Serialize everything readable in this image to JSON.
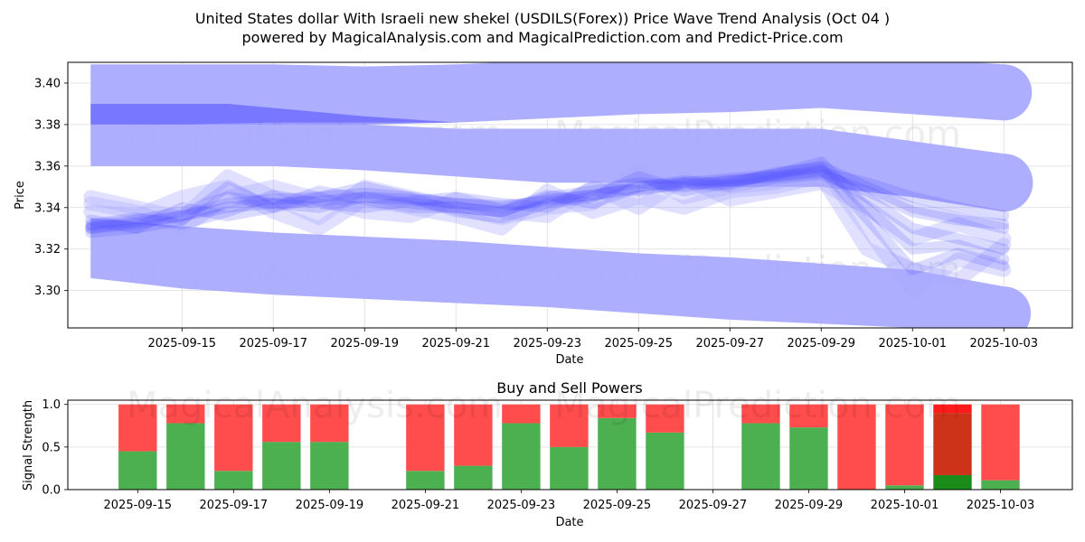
{
  "title_line1": "United States dollar With Israeli new shekel (USDILS(Forex)) Price Wave Trend Analysis (Oct 04 )",
  "title_line2": "powered by MagicalAnalysis.com and MagicalPrediction.com and Predict-Price.com",
  "watermarks": [
    "MagicalAnalysis.com",
    "MagicalPrediction.com"
  ],
  "colors": {
    "band": "#aaaaff",
    "wave": "#4a4aff",
    "buy": "#4caf50",
    "sell": "#ff4c4c",
    "buy_strong": "#1a8c1a",
    "sell_strong": "#ff1a1a",
    "sell_dark": "#cc3318"
  },
  "chart_data": [
    {
      "type": "line",
      "ylabel": "Price",
      "xlabel": "Date",
      "x_ticks": [
        "2025-09-15",
        "2025-09-17",
        "2025-09-19",
        "2025-09-21",
        "2025-09-23",
        "2025-09-25",
        "2025-09-27",
        "2025-09-29",
        "2025-10-01",
        "2025-10-03"
      ],
      "y_ticks": [
        "3.30",
        "3.32",
        "3.34",
        "3.36",
        "3.38",
        "3.40"
      ],
      "xlim": [
        "2025-09-12T12:00",
        "2025-10-04T12:00"
      ],
      "ylim": [
        3.282,
        3.41
      ],
      "grid": true,
      "series": [
        {
          "role": "upper-band",
          "x": [
            "2025-09-13",
            "2025-09-15",
            "2025-09-17",
            "2025-09-19",
            "2025-09-21",
            "2025-09-23",
            "2025-09-25",
            "2025-09-27",
            "2025-09-29",
            "2025-10-01",
            "2025-10-03"
          ],
          "upper": [
            3.409,
            3.409,
            3.409,
            3.408,
            3.409,
            3.411,
            3.413,
            3.414,
            3.415,
            3.412,
            3.409
          ],
          "lower": [
            3.38,
            3.38,
            3.381,
            3.381,
            3.381,
            3.383,
            3.385,
            3.386,
            3.388,
            3.385,
            3.382
          ]
        },
        {
          "role": "middle-band",
          "x": [
            "2025-09-13",
            "2025-09-15",
            "2025-09-17",
            "2025-09-19",
            "2025-09-21",
            "2025-09-23",
            "2025-09-25",
            "2025-09-27",
            "2025-09-29",
            "2025-10-01",
            "2025-10-03"
          ],
          "upper": [
            3.38,
            3.38,
            3.38,
            3.38,
            3.378,
            3.378,
            3.378,
            3.378,
            3.378,
            3.372,
            3.366
          ],
          "lower": [
            3.36,
            3.36,
            3.36,
            3.358,
            3.355,
            3.352,
            3.352,
            3.35,
            3.35,
            3.345,
            3.338
          ]
        },
        {
          "role": "lower-band",
          "x": [
            "2025-09-13",
            "2025-09-15",
            "2025-09-17",
            "2025-09-19",
            "2025-09-21",
            "2025-09-23",
            "2025-09-25",
            "2025-09-27",
            "2025-09-29",
            "2025-10-01",
            "2025-10-03"
          ],
          "upper": [
            3.335,
            3.331,
            3.328,
            3.326,
            3.324,
            3.321,
            3.318,
            3.316,
            3.313,
            3.31,
            3.302
          ],
          "lower": [
            3.306,
            3.301,
            3.298,
            3.296,
            3.294,
            3.292,
            3.289,
            3.286,
            3.284,
            3.282,
            3.276
          ]
        },
        {
          "role": "dark-stripe",
          "x": [
            "2025-09-13",
            "2025-09-16",
            "2025-09-19",
            "2025-09-21"
          ],
          "upper": [
            3.39,
            3.39,
            3.384,
            3.381
          ],
          "lower": [
            3.38,
            3.38,
            3.38,
            3.381
          ]
        },
        {
          "role": "waves",
          "x": [
            "2025-09-13",
            "2025-09-14",
            "2025-09-15",
            "2025-09-16",
            "2025-09-17",
            "2025-09-18",
            "2025-09-19",
            "2025-09-20",
            "2025-09-21",
            "2025-09-22",
            "2025-09-23",
            "2025-09-24",
            "2025-09-25",
            "2025-09-26",
            "2025-09-27",
            "2025-09-28",
            "2025-09-29",
            "2025-09-30",
            "2025-10-01",
            "2025-10-02",
            "2025-10-03"
          ],
          "lines": [
            [
              3.33,
              3.332,
              3.336,
              3.342,
              3.344,
              3.345,
              3.347,
              3.345,
              3.342,
              3.34,
              3.344,
              3.346,
              3.35,
              3.352,
              3.354,
              3.356,
              3.36,
              3.35,
              3.34,
              3.335,
              3.33
            ],
            [
              3.331,
              3.334,
              3.338,
              3.345,
              3.342,
              3.34,
              3.345,
              3.342,
              3.34,
              3.338,
              3.345,
              3.348,
              3.352,
              3.35,
              3.353,
              3.355,
              3.358,
              3.345,
              3.33,
              3.325,
              3.32
            ],
            [
              3.328,
              3.33,
              3.334,
              3.35,
              3.34,
              3.345,
              3.35,
              3.345,
              3.338,
              3.335,
              3.342,
              3.345,
              3.355,
              3.348,
              3.352,
              3.356,
              3.362,
              3.34,
              3.32,
              3.322,
              3.315
            ],
            [
              3.332,
              3.335,
              3.332,
              3.338,
              3.346,
              3.342,
              3.34,
              3.343,
              3.345,
              3.342,
              3.34,
              3.35,
              3.348,
              3.352,
              3.35,
              3.354,
              3.356,
              3.348,
              3.338,
              3.334,
              3.332
            ],
            [
              3.334,
              3.33,
              3.34,
              3.336,
              3.34,
              3.348,
              3.344,
              3.34,
              3.34,
              3.338,
              3.346,
              3.342,
              3.35,
              3.353,
              3.351,
              3.357,
              3.359,
              3.335,
              3.31,
              3.318,
              3.312
            ],
            [
              3.33,
              3.333,
              3.336,
              3.34,
              3.342,
              3.343,
              3.345,
              3.344,
              3.342,
              3.341,
              3.343,
              3.346,
              3.349,
              3.351,
              3.353,
              3.355,
              3.357,
              3.352,
              3.345,
              3.34,
              3.336
            ]
          ],
          "faint_lines": [
            [
              3.345,
              3.34,
              3.335,
              3.355,
              3.345,
              3.335,
              3.35,
              3.345,
              3.34,
              3.335,
              3.34,
              3.342,
              3.358,
              3.345,
              3.35,
              3.352,
              3.36,
              3.33,
              3.3,
              3.315,
              3.31
            ],
            [
              3.338,
              3.336,
              3.345,
              3.35,
              3.338,
              3.33,
              3.344,
              3.34,
              3.336,
              3.33,
              3.348,
              3.338,
              3.345,
              3.34,
              3.348,
              3.35,
              3.355,
              3.32,
              3.31,
              3.305,
              3.322
            ],
            [
              3.342,
              3.338,
              3.33,
              3.345,
              3.35,
              3.344,
              3.338,
              3.336,
              3.344,
              3.338,
              3.336,
              3.35,
              3.34,
              3.354,
              3.344,
              3.348,
              3.352,
              3.34,
              3.325,
              3.332,
              3.325
            ]
          ]
        }
      ]
    },
    {
      "type": "bar",
      "title": "Buy and Sell Powers",
      "ylabel": "Signal Strength",
      "xlabel": "Date",
      "x_ticks": [
        "2025-09-15",
        "2025-09-17",
        "2025-09-19",
        "2025-09-21",
        "2025-09-23",
        "2025-09-25",
        "2025-09-27",
        "2025-09-29",
        "2025-10-01",
        "2025-10-03"
      ],
      "y_ticks": [
        "0.0",
        "0.5",
        "1.0"
      ],
      "xlim": [
        "2025-09-13T13:00",
        "2025-10-04T12:00"
      ],
      "ylim": [
        0,
        1.05
      ],
      "grid": true,
      "categories": [
        "2025-09-15",
        "2025-09-16",
        "2025-09-17",
        "2025-09-18",
        "2025-09-19",
        "2025-09-21",
        "2025-09-22",
        "2025-09-23",
        "2025-09-24",
        "2025-09-25",
        "2025-09-26",
        "2025-09-28",
        "2025-09-29",
        "2025-09-30",
        "2025-10-01",
        "2025-10-02",
        "2025-10-03"
      ],
      "series": [
        {
          "role": "buy",
          "values": [
            0.45,
            0.78,
            0.22,
            0.56,
            0.56,
            0.22,
            0.28,
            0.78,
            0.5,
            0.84,
            0.67,
            0.78,
            0.73,
            0.0,
            0.05,
            0.17,
            0.11
          ]
        },
        {
          "role": "sell",
          "values": [
            0.55,
            0.22,
            0.78,
            0.44,
            0.44,
            0.78,
            0.72,
            0.22,
            0.5,
            0.16,
            0.33,
            0.22,
            0.27,
            1.0,
            0.95,
            0.83,
            0.89
          ]
        }
      ],
      "strong_category": "2025-10-02",
      "strong_sell_top_share": 0.12
    }
  ]
}
